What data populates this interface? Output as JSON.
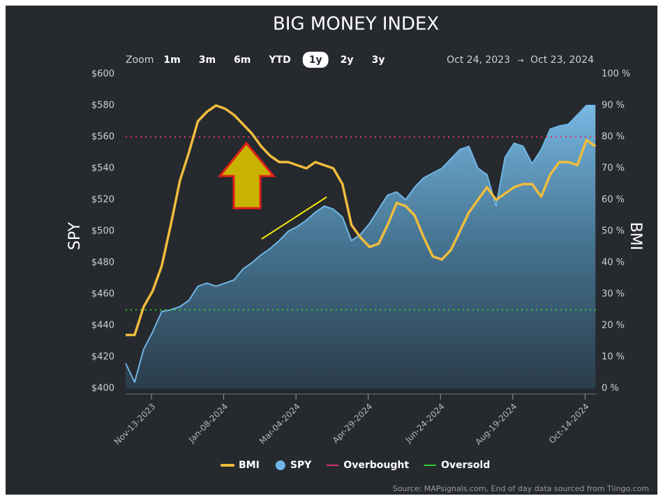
{
  "chart_data": {
    "type": "line",
    "title": "BIG MONEY INDEX",
    "x": [
      "2023-10-24",
      "2023-10-31",
      "2023-11-07",
      "2023-11-14",
      "2023-11-21",
      "2023-11-28",
      "2023-12-05",
      "2023-12-12",
      "2023-12-19",
      "2023-12-26",
      "2024-01-02",
      "2024-01-09",
      "2024-01-16",
      "2024-01-23",
      "2024-01-30",
      "2024-02-06",
      "2024-02-13",
      "2024-02-20",
      "2024-02-27",
      "2024-03-05",
      "2024-03-12",
      "2024-03-19",
      "2024-03-26",
      "2024-04-02",
      "2024-04-09",
      "2024-04-16",
      "2024-04-23",
      "2024-04-30",
      "2024-05-07",
      "2024-05-14",
      "2024-05-21",
      "2024-05-28",
      "2024-06-04",
      "2024-06-11",
      "2024-06-18",
      "2024-06-25",
      "2024-07-02",
      "2024-07-09",
      "2024-07-16",
      "2024-07-23",
      "2024-07-30",
      "2024-08-06",
      "2024-08-13",
      "2024-08-20",
      "2024-08-27",
      "2024-09-03",
      "2024-09-10",
      "2024-09-17",
      "2024-09-24",
      "2024-10-01",
      "2024-10-08",
      "2024-10-15",
      "2024-10-22"
    ],
    "series": [
      {
        "name": "SPY",
        "color": "#6fb6e6",
        "style": "area",
        "values": [
          416,
          404,
          425,
          436,
          449,
          450,
          452,
          456,
          465,
          467,
          465,
          467,
          469,
          476,
          480,
          485,
          489,
          494,
          500,
          503,
          507,
          512,
          516,
          514,
          509,
          494,
          498,
          505,
          514,
          523,
          525,
          520,
          528,
          534,
          537,
          540,
          546,
          552,
          554,
          540,
          536,
          516,
          547,
          556,
          554,
          543,
          552,
          565,
          567,
          568,
          574,
          580,
          580
        ]
      },
      {
        "name": "BMI",
        "color": "#f0bd3c",
        "style": "line",
        "axis": "y2",
        "values": [
          17,
          17,
          26,
          31,
          39,
          52,
          66,
          75,
          85,
          88,
          90,
          89,
          87,
          84,
          81,
          77,
          74,
          72,
          72,
          71,
          70,
          72,
          71,
          70,
          65,
          52,
          48,
          45,
          46,
          52,
          59,
          58,
          55,
          48,
          42,
          41,
          44,
          50,
          56,
          60,
          64,
          60,
          62,
          64,
          65,
          65,
          61,
          68,
          72,
          72,
          71,
          79,
          77
        ]
      }
    ],
    "reference_lines": [
      {
        "name": "Overbought",
        "color": "#d6336c",
        "value": 80,
        "axis": "y2"
      },
      {
        "name": "Oversold",
        "color": "#33cc33",
        "value": 25,
        "axis": "y2"
      }
    ],
    "y_label": "SPY",
    "y2_label": "BMI",
    "xlim": [
      "2023-10-24",
      "2024-10-23"
    ],
    "xticks": [
      {
        "value": "2023-11-13",
        "label": "Nov-13-2023"
      },
      {
        "value": "2024-01-08",
        "label": "Jan-08-2024"
      },
      {
        "value": "2024-03-04",
        "label": "Mar-04-2024"
      },
      {
        "value": "2024-04-29",
        "label": "Apr-29-2024"
      },
      {
        "value": "2024-06-24",
        "label": "Jun-24-2024"
      },
      {
        "value": "2024-08-19",
        "label": "Aug-19-2024"
      },
      {
        "value": "2024-10-14",
        "label": "Oct-14-2024"
      }
    ],
    "ylim": [
      400,
      600
    ],
    "yticks": [
      {
        "value": 400,
        "label": "$400"
      },
      {
        "value": 420,
        "label": "$420"
      },
      {
        "value": 440,
        "label": "$440"
      },
      {
        "value": 460,
        "label": "$460"
      },
      {
        "value": 480,
        "label": "$480"
      },
      {
        "value": 500,
        "label": "$500"
      },
      {
        "value": 520,
        "label": "$520"
      },
      {
        "value": 540,
        "label": "$540"
      },
      {
        "value": 560,
        "label": "$560"
      },
      {
        "value": 580,
        "label": "$580"
      },
      {
        "value": 600,
        "label": "$600"
      }
    ],
    "y2lim": [
      0,
      100
    ],
    "y2ticks": [
      {
        "value": 0,
        "label": "0 %"
      },
      {
        "value": 10,
        "label": "10 %"
      },
      {
        "value": 20,
        "label": "20 %"
      },
      {
        "value": 30,
        "label": "30 %"
      },
      {
        "value": 40,
        "label": "40 %"
      },
      {
        "value": 50,
        "label": "50 %"
      },
      {
        "value": 60,
        "label": "60 %"
      },
      {
        "value": 70,
        "label": "70 %"
      },
      {
        "value": 80,
        "label": "80 %"
      },
      {
        "value": 90,
        "label": "90 %"
      },
      {
        "value": 100,
        "label": "100 %"
      }
    ],
    "grid": false
  },
  "controls": {
    "zoom_label": "Zoom",
    "zoom_options": [
      "1m",
      "3m",
      "6m",
      "YTD",
      "1y",
      "2y",
      "3y"
    ],
    "selected": "1y"
  },
  "range": {
    "from": "Oct 24, 2023",
    "arrow": "→",
    "to": "Oct 23, 2024"
  },
  "source": "Source: MAPsignals.com, End of day data sourced from Tiingo.com"
}
